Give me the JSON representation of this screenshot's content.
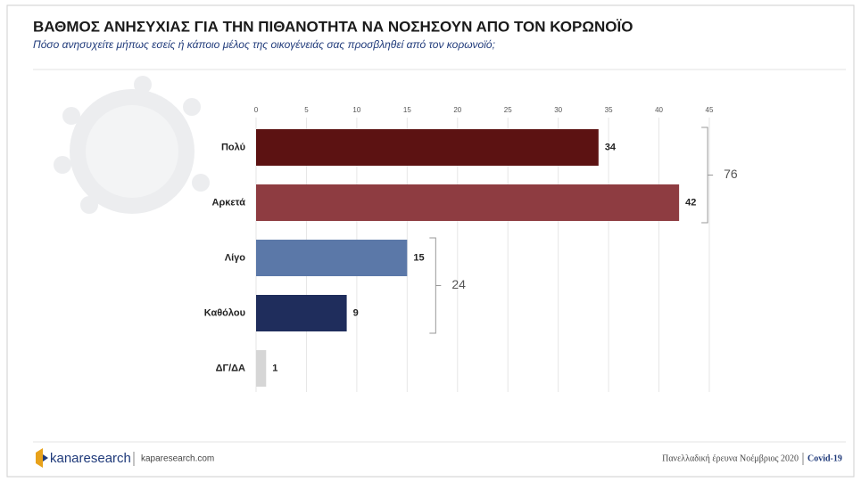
{
  "chart_data": {
    "type": "bar",
    "orientation": "horizontal",
    "title": "ΒΑΘΜΟΣ ΑΝΗΣΥΧΙΑΣ ΓΙΑ ΤΗΝ ΠΙΘΑΝΟΤΗΤΑ ΝΑ ΝΟΣΗΣΟΥΝ ΑΠΟ ΤΟΝ ΚΟΡΩΝΟΪΟ",
    "subtitle": "Πόσο ανησυχείτε μήπως εσείς ή κάποιο μέλος της οικογένειάς σας προσβληθεί από τον κορωνοϊό;",
    "categories": [
      "Πολύ",
      "Αρκετά",
      "Λίγο",
      "Καθόλου",
      "ΔΓ/ΔΑ"
    ],
    "values": [
      34,
      42,
      15,
      9,
      1
    ],
    "colors": [
      "#5c1212",
      "#8e3c41",
      "#5b78a8",
      "#1f2d5c",
      "#d6d6d6"
    ],
    "xlim": [
      0,
      45
    ],
    "xticks": [
      0,
      5,
      10,
      15,
      20,
      25,
      30,
      35,
      40,
      45
    ],
    "grid": true,
    "group_totals": [
      76,
      24
    ]
  },
  "footer": {
    "brand": "kanaresearch",
    "site": "kaparesearch.com",
    "survey": "Πανελλαδική έρευνα Νοέμβριος 2020",
    "tag": "Covid-19"
  }
}
